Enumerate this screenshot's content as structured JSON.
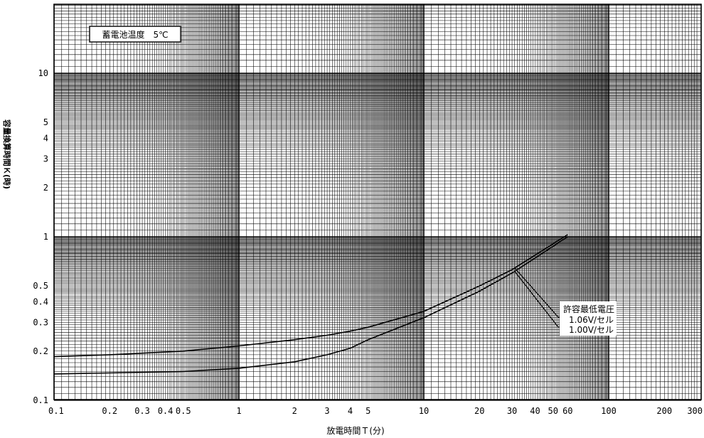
{
  "chart_data": {
    "type": "line",
    "title": "蓄電池温度　5℃",
    "xlabel": "放電時間Ｔ(分)",
    "ylabel": "容量換算時間Ｋ(時)",
    "x_scale": "log",
    "y_scale": "log",
    "xlim": [
      0.1,
      300
    ],
    "ylim": [
      0.1,
      20
    ],
    "x_ticks": [
      {
        "value": 0.1,
        "label": "0.1"
      },
      {
        "value": 0.2,
        "label": "0.2"
      },
      {
        "value": 0.3,
        "label": "0.3"
      },
      {
        "value": 0.4,
        "label": "0.4"
      },
      {
        "value": 0.5,
        "label": "0.5"
      },
      {
        "value": 1,
        "label": "1"
      },
      {
        "value": 2,
        "label": "2"
      },
      {
        "value": 3,
        "label": "3"
      },
      {
        "value": 4,
        "label": "4"
      },
      {
        "value": 5,
        "label": "5"
      },
      {
        "value": 10,
        "label": "10"
      },
      {
        "value": 20,
        "label": "20"
      },
      {
        "value": 30,
        "label": "30"
      },
      {
        "value": 40,
        "label": "40"
      },
      {
        "value": 50,
        "label": "50"
      },
      {
        "value": 60,
        "label": "60"
      },
      {
        "value": 100,
        "label": "100"
      },
      {
        "value": 200,
        "label": "200"
      },
      {
        "value": 300,
        "label": "300"
      }
    ],
    "y_ticks": [
      {
        "value": 0.1,
        "label": "0.1"
      },
      {
        "value": 0.2,
        "label": "0.2"
      },
      {
        "value": 0.3,
        "label": "0.3"
      },
      {
        "value": 0.4,
        "label": "0.4"
      },
      {
        "value": 0.5,
        "label": "0.5"
      },
      {
        "value": 1,
        "label": "1"
      },
      {
        "value": 2,
        "label": "2"
      },
      {
        "value": 3,
        "label": "3"
      },
      {
        "value": 4,
        "label": "4"
      },
      {
        "value": 5,
        "label": "5"
      },
      {
        "value": 10,
        "label": "10"
      }
    ],
    "grid": true,
    "annotation_title": "許容最低電圧",
    "series": [
      {
        "name": "1.06V/セル",
        "x": [
          0.1,
          0.2,
          0.5,
          1,
          2,
          3,
          4,
          5,
          10,
          20,
          30,
          60
        ],
        "values": [
          0.185,
          0.19,
          0.2,
          0.215,
          0.235,
          0.25,
          0.265,
          0.28,
          0.35,
          0.5,
          0.63,
          1.03
        ]
      },
      {
        "name": "1.00V/セル",
        "x": [
          0.1,
          0.2,
          0.5,
          1,
          2,
          3,
          4,
          5,
          10,
          20,
          30,
          60
        ],
        "values": [
          0.145,
          0.147,
          0.15,
          0.157,
          0.172,
          0.19,
          0.208,
          0.235,
          0.32,
          0.465,
          0.6,
          1.0
        ]
      }
    ]
  }
}
